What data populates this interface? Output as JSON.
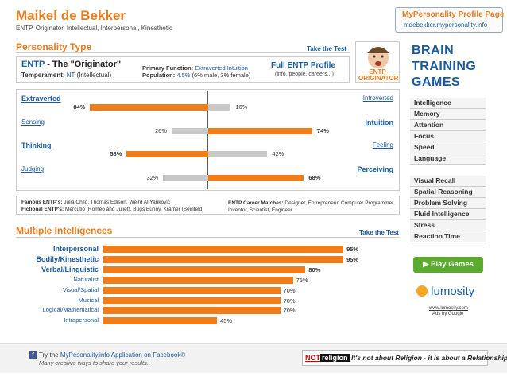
{
  "header": {
    "name": "Maikel de Bekker",
    "subtitle": "ENTP, Originator, Intellectual, Interpersonal, Kinesthetic",
    "badge_title": "MyPersonality Profile Page",
    "badge_url": "mdebekker.mypersonality.info"
  },
  "personality": {
    "heading": "Personality Type",
    "take_test": "Take the Test",
    "type_code": "ENTP",
    "type_name": "- The \"Originator\"",
    "temperament_label": "Temperament:",
    "temperament_code": "NT",
    "temperament_name": "(Intellectual)",
    "primary_label": "Primary Function:",
    "primary_value": "Extraverted Intuition",
    "population_label": "Population:",
    "population_value": "4.5%",
    "population_detail": "(6% male, 3% female)",
    "profile_link": "Full ENTP Profile",
    "profile_detail": "(info, people, careers...)",
    "image_text": "ENTP ORIGINATOR",
    "dichotomies": [
      {
        "left": "Extraverted",
        "right": "Introverted",
        "left_value": 84,
        "left_label": "84%",
        "right_value": 16,
        "right_label": "16%"
      },
      {
        "left": "Sensing",
        "right": "Intuition",
        "left_value": 26,
        "left_label": "26%",
        "right_value": 74,
        "right_label": "74%"
      },
      {
        "left": "Thinking",
        "right": "Feeling",
        "left_value": 58,
        "left_label": "58%",
        "right_value": 42,
        "right_label": "42%"
      },
      {
        "left": "Judging",
        "right": "Perceiving",
        "left_value": 32,
        "left_label": "32%",
        "right_value": 68,
        "right_label": "68%"
      }
    ],
    "famous_label": "Famous ENTP's:",
    "famous": "Julia Child, Thomas Edison, Weird Al Yankovic",
    "fictional_label": "Fictional ENTP's:",
    "fictional": "Mercutio (Romeo and Juliet), Bugs Bunny, Kramer (Seinfeld)",
    "career_label": "ENTP Career Matches:",
    "careers": "Designer, Entrepreneur, Computer Programmer, Inventor, Scientist, Engineer"
  },
  "intelligences": {
    "heading": "Multiple Intelligences",
    "take_test": "Take the Test",
    "items": [
      {
        "name": "Interpersonal",
        "value": 95,
        "label": "95%"
      },
      {
        "name": "Bodily/Kinesthetic",
        "value": 95,
        "label": "95%"
      },
      {
        "name": "Verbal/Linguistic",
        "value": 80,
        "label": "80%"
      },
      {
        "name": "Naturalist",
        "value": 75,
        "label": "75%"
      },
      {
        "name": "Visual/Spatial",
        "value": 70,
        "label": "70%"
      },
      {
        "name": "Musical",
        "value": 70,
        "label": "70%"
      },
      {
        "name": "Logical/Mathematical",
        "value": 70,
        "label": "70%"
      },
      {
        "name": "Intrapersonal",
        "value": 45,
        "label": "45%"
      }
    ]
  },
  "sidebar": {
    "title": "BRAIN TRAINING GAMES",
    "list1": [
      "Intelligence",
      "Memory",
      "Attention",
      "Focus",
      "Speed",
      "Language"
    ],
    "list2": [
      "Visual Recall",
      "Spatial Reasoning",
      "Problem Solving",
      "Fluid Intelligence",
      "Stress",
      "Reaction Time"
    ],
    "button": "▶ Play Games",
    "logo": "lumosity",
    "url": "www.lumosity.com",
    "ads": "Ads by Google"
  },
  "footer": {
    "fb_prefix": "Try the",
    "fb_link": "MyPesonality.info Application on Facebook®",
    "fb_sub": "Many creative ways to share your results.",
    "banner_not": "NOT",
    "banner_religion": "religion",
    "banner_text": "It's not about Religion - it is about a Relationship"
  }
}
